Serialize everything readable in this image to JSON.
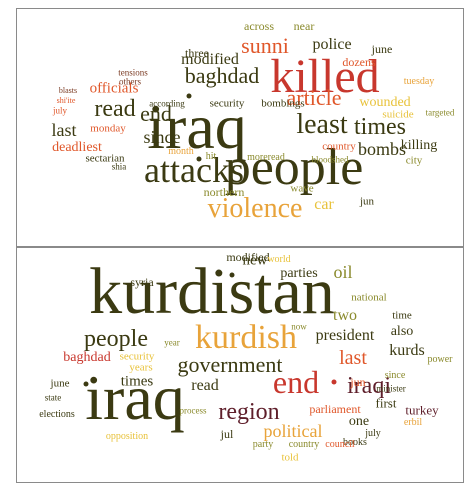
{
  "colors": {
    "dark_olive": "#3b3a12",
    "olive": "#8a8a2c",
    "orange": "#e0572a",
    "red": "#c8372d",
    "gold": "#e8a33a",
    "yellow": "#e8c23a",
    "maroon": "#5e1e2a",
    "brown": "#7a3a22"
  },
  "cloud1": {
    "words": [
      {
        "text": "iraq",
        "color": "dark_olive"
      },
      {
        "text": "people",
        "color": "dark_olive"
      },
      {
        "text": "killed",
        "color": "red"
      },
      {
        "text": "attacks",
        "color": "dark_olive"
      },
      {
        "text": "violence",
        "color": "gold"
      },
      {
        "text": "least",
        "color": "dark_olive"
      },
      {
        "text": "times",
        "color": "dark_olive"
      },
      {
        "text": "article",
        "color": "orange"
      },
      {
        "text": "sunni",
        "color": "orange"
      },
      {
        "text": "baghdad",
        "color": "dark_olive"
      },
      {
        "text": "end",
        "color": "dark_olive"
      },
      {
        "text": "read",
        "color": "dark_olive"
      },
      {
        "text": "since",
        "color": "dark_olive"
      },
      {
        "text": "bombs",
        "color": "dark_olive"
      },
      {
        "text": "police",
        "color": "dark_olive"
      },
      {
        "text": "modified",
        "color": "dark_olive"
      },
      {
        "text": "wounded",
        "color": "yellow"
      },
      {
        "text": "last",
        "color": "dark_olive"
      },
      {
        "text": "car",
        "color": "yellow"
      },
      {
        "text": "killing",
        "color": "dark_olive"
      },
      {
        "text": "officials",
        "color": "orange"
      },
      {
        "text": "deadliest",
        "color": "orange"
      },
      {
        "text": "northern",
        "color": "olive"
      },
      {
        "text": "across",
        "color": "olive"
      },
      {
        "text": "near",
        "color": "olive"
      },
      {
        "text": "june",
        "color": "dark_olive"
      },
      {
        "text": "dozens",
        "color": "orange"
      },
      {
        "text": "three",
        "color": "dark_olive"
      },
      {
        "text": "security",
        "color": "dark_olive"
      },
      {
        "text": "bombings",
        "color": "dark_olive"
      },
      {
        "text": "suicide",
        "color": "yellow"
      },
      {
        "text": "targeted",
        "color": "olive"
      },
      {
        "text": "monday",
        "color": "orange"
      },
      {
        "text": "sectarian",
        "color": "dark_olive"
      },
      {
        "text": "month",
        "color": "gold"
      },
      {
        "text": "country",
        "color": "orange"
      },
      {
        "text": "city",
        "color": "olive"
      },
      {
        "text": "jun",
        "color": "dark_olive"
      },
      {
        "text": "wave",
        "color": "olive"
      },
      {
        "text": "hit",
        "color": "olive"
      },
      {
        "text": "moreread",
        "color": "olive"
      },
      {
        "text": "bloodshed",
        "color": "olive"
      },
      {
        "text": "according",
        "color": "dark_olive"
      },
      {
        "text": "tensions",
        "color": "brown"
      },
      {
        "text": "others",
        "color": "brown"
      },
      {
        "text": "blasts",
        "color": "brown"
      },
      {
        "text": "shi'ite",
        "color": "orange"
      },
      {
        "text": "july",
        "color": "orange"
      },
      {
        "text": "shia",
        "color": "dark_olive"
      },
      {
        "text": "tuesday",
        "color": "gold"
      }
    ]
  },
  "cloud2": {
    "words": [
      {
        "text": "kurdistan",
        "color": "dark_olive"
      },
      {
        "text": "iraq",
        "color": "dark_olive"
      },
      {
        "text": "kurdish",
        "color": "gold"
      },
      {
        "text": "end",
        "color": "red"
      },
      {
        "text": "government",
        "color": "dark_olive"
      },
      {
        "text": "people",
        "color": "dark_olive"
      },
      {
        "text": "region",
        "color": "maroon"
      },
      {
        "text": "iraqi",
        "color": "maroon"
      },
      {
        "text": "last",
        "color": "orange"
      },
      {
        "text": "oil",
        "color": "olive"
      },
      {
        "text": "two",
        "color": "olive"
      },
      {
        "text": "president",
        "color": "dark_olive"
      },
      {
        "text": "political",
        "color": "gold"
      },
      {
        "text": "kurds",
        "color": "dark_olive"
      },
      {
        "text": "new",
        "color": "dark_olive"
      },
      {
        "text": "parties",
        "color": "dark_olive"
      },
      {
        "text": "also",
        "color": "dark_olive"
      },
      {
        "text": "read",
        "color": "dark_olive"
      },
      {
        "text": "times",
        "color": "dark_olive"
      },
      {
        "text": "baghdad",
        "color": "red"
      },
      {
        "text": "parliament",
        "color": "orange"
      },
      {
        "text": "modified",
        "color": "dark_olive"
      },
      {
        "text": "syria",
        "color": "dark_olive"
      },
      {
        "text": "security",
        "color": "yellow"
      },
      {
        "text": "years",
        "color": "yellow"
      },
      {
        "text": "jun",
        "color": "orange"
      },
      {
        "text": "first",
        "color": "dark_olive"
      },
      {
        "text": "one",
        "color": "dark_olive"
      },
      {
        "text": "turkey",
        "color": "maroon"
      },
      {
        "text": "national",
        "color": "olive"
      },
      {
        "text": "time",
        "color": "dark_olive"
      },
      {
        "text": "power",
        "color": "olive"
      },
      {
        "text": "world",
        "color": "yellow"
      },
      {
        "text": "now",
        "color": "olive"
      },
      {
        "text": "year",
        "color": "olive"
      },
      {
        "text": "june",
        "color": "dark_olive"
      },
      {
        "text": "state",
        "color": "dark_olive"
      },
      {
        "text": "elections",
        "color": "dark_olive"
      },
      {
        "text": "process",
        "color": "olive"
      },
      {
        "text": "since",
        "color": "olive"
      },
      {
        "text": "minister",
        "color": "dark_olive"
      },
      {
        "text": "july",
        "color": "dark_olive"
      },
      {
        "text": "erbil",
        "color": "gold"
      },
      {
        "text": "books",
        "color": "dark_olive"
      },
      {
        "text": "jul",
        "color": "dark_olive"
      },
      {
        "text": "party",
        "color": "olive"
      },
      {
        "text": "country",
        "color": "olive"
      },
      {
        "text": "council",
        "color": "orange"
      },
      {
        "text": "told",
        "color": "yellow"
      },
      {
        "text": "opposition",
        "color": "yellow"
      }
    ]
  }
}
